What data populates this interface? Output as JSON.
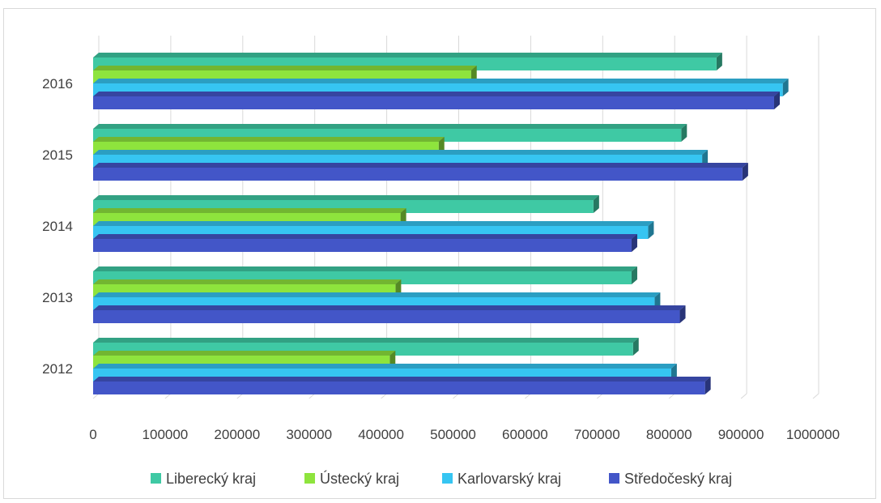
{
  "chart_data": {
    "type": "bar",
    "orientation": "horizontal",
    "style": "3d-clustered",
    "categories": [
      "2012",
      "2013",
      "2014",
      "2015",
      "2016"
    ],
    "series": [
      {
        "name": "Liberecký kraj",
        "color": "#3fc9a4",
        "values": [
          750000,
          748000,
          695000,
          817000,
          866000
        ]
      },
      {
        "name": "Ústecký kraj",
        "color": "#8ee43d",
        "values": [
          412000,
          420000,
          427000,
          480000,
          525000
        ]
      },
      {
        "name": "Karlovarský kraj",
        "color": "#36c5f2",
        "values": [
          803000,
          780000,
          771000,
          846000,
          958000
        ]
      },
      {
        "name": "Středočeský kraj",
        "color": "#4356c8",
        "values": [
          850000,
          815000,
          748000,
          902000,
          946000
        ]
      }
    ],
    "xticks": [
      "0",
      "100000",
      "200000",
      "300000",
      "400000",
      "500000",
      "600000",
      "700000",
      "800000",
      "900000",
      "1000000"
    ],
    "xlim": [
      0,
      1000000
    ],
    "grid": true,
    "legend_position": "bottom",
    "title": "",
    "xlabel": "",
    "ylabel": ""
  }
}
